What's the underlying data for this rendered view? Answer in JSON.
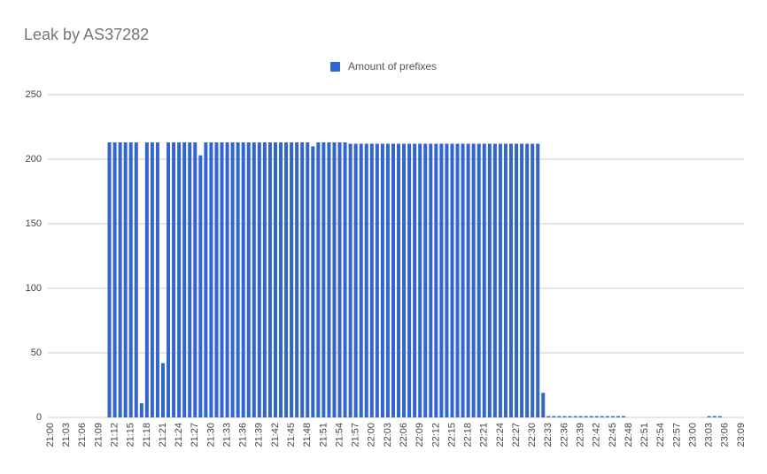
{
  "chart_data": {
    "type": "bar",
    "title": "Leak by AS37282",
    "categories": [
      "21:00",
      null,
      null,
      "21:03",
      null,
      null,
      "21:06",
      null,
      null,
      "21:09",
      null,
      null,
      "21:12",
      null,
      null,
      "21:15",
      null,
      null,
      "21:18",
      null,
      null,
      "21:21",
      null,
      null,
      "21:24",
      null,
      null,
      "21:27",
      null,
      null,
      "21:30",
      null,
      null,
      "21:33",
      null,
      null,
      "21:36",
      null,
      null,
      "21:39",
      null,
      null,
      "21:42",
      null,
      null,
      "21:45",
      null,
      null,
      "21:48",
      null,
      null,
      "21:51",
      null,
      null,
      "21:54",
      null,
      null,
      "21:57",
      null,
      null,
      "22:00",
      null,
      null,
      "22:03",
      null,
      null,
      "22:06",
      null,
      null,
      "22:09",
      null,
      null,
      "22:12",
      null,
      null,
      "22:15",
      null,
      null,
      "22:18",
      null,
      null,
      "22:21",
      null,
      null,
      "22:24",
      null,
      null,
      "22:27",
      null,
      null,
      "22:30",
      null,
      null,
      "22:33",
      null,
      null,
      "22:36",
      null,
      null,
      "22:39",
      null,
      null,
      "22:42",
      null,
      null,
      "22:45",
      null,
      null,
      "22:48",
      null,
      null,
      "22:51",
      null,
      null,
      "22:54",
      null,
      null,
      "22:57",
      null,
      null,
      "23:00",
      null,
      null,
      "23:03",
      null,
      null,
      "23:06",
      null,
      null,
      "23:09"
    ],
    "series": [
      {
        "name": "Amount of prefixes",
        "color": "#3366cc",
        "values": [
          0,
          0,
          0,
          0,
          0,
          0,
          0,
          0,
          0,
          0,
          0,
          213,
          213,
          213,
          213,
          213,
          213,
          11,
          213,
          213,
          213,
          42,
          213,
          213,
          213,
          213,
          213,
          213,
          203,
          213,
          213,
          213,
          213,
          213,
          213,
          213,
          213,
          213,
          213,
          213,
          213,
          213,
          213,
          213,
          213,
          213,
          213,
          213,
          213,
          210,
          213,
          213,
          213,
          213,
          213,
          213,
          212,
          212,
          212,
          212,
          212,
          212,
          212,
          212,
          212,
          212,
          212,
          212,
          212,
          212,
          212,
          212,
          212,
          212,
          212,
          212,
          212,
          212,
          212,
          212,
          212,
          212,
          212,
          212,
          212,
          212,
          212,
          212,
          212,
          212,
          212,
          212,
          19,
          1,
          1,
          1,
          1,
          1,
          1,
          1,
          1,
          1,
          1,
          1,
          1,
          1,
          1,
          1,
          0,
          0,
          0,
          0,
          0,
          0,
          0,
          0,
          0,
          0,
          0,
          0,
          0,
          0,
          0,
          1,
          1,
          1,
          0,
          0,
          0,
          0
        ]
      }
    ],
    "ylim": [
      0,
      250
    ],
    "yticks": [
      0,
      50,
      100,
      150,
      200,
      250
    ],
    "grid": true,
    "legend": "top"
  }
}
